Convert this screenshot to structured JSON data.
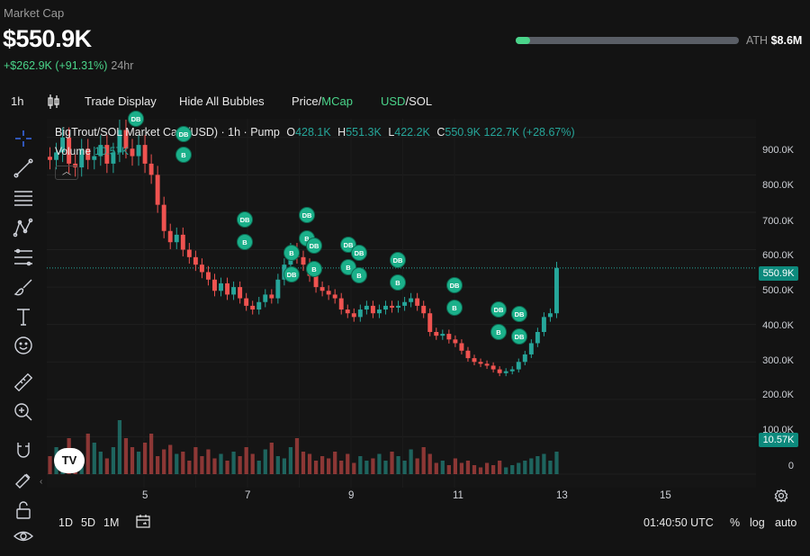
{
  "header": {
    "label": "Market Cap",
    "value": "$550.9K",
    "change": "+$262.9K (+91.31%)",
    "period": "24hr",
    "ath_label": "ATH",
    "ath_value": "$8.6M",
    "ath_progress": 0.064
  },
  "toolbar": {
    "interval": "1h",
    "trade_display": "Trade Display",
    "hide_bubbles": "Hide All Bubbles",
    "price_label": "Price",
    "mcap_label": "MCap",
    "usd_label": "USD",
    "sol_label": "SOL"
  },
  "legend": {
    "title": "BigTrout/SOL Market Cap (USD) · 1h · Pump",
    "o_key": "O",
    "o": "428.1K",
    "h_key": "H",
    "h": "551.3K",
    "l_key": "L",
    "l": "422.2K",
    "c_key": "C",
    "c": "550.9K",
    "change": "122.7K (+28.67%)",
    "volume_label": "Volume",
    "volume_value": "10.57K"
  },
  "yaxis": {
    "ticks": [
      "900.0K",
      "800.0K",
      "700.0K",
      "600.0K",
      "500.0K",
      "400.0K",
      "300.0K",
      "200.0K",
      "100.0K",
      "0"
    ],
    "current_price_tag": "550.9K",
    "volume_tag": "10.57K"
  },
  "xaxis": {
    "ticks": [
      "5",
      "7",
      "9",
      "11",
      "13",
      "15"
    ]
  },
  "bottom": {
    "ranges": [
      "1D",
      "5D",
      "1M"
    ],
    "time": "01:40:50 UTC",
    "percent": "%",
    "log": "log",
    "auto": "auto"
  },
  "logo_text": "TV",
  "bubbles": [
    {
      "label": "DB"
    },
    {
      "label": "DB"
    },
    {
      "label": "B"
    },
    {
      "label": "DB"
    },
    {
      "label": "B"
    },
    {
      "label": "DB"
    },
    {
      "label": "B"
    },
    {
      "label": "DB"
    },
    {
      "label": "B"
    },
    {
      "label": "DB"
    },
    {
      "label": "B"
    },
    {
      "label": "DB"
    },
    {
      "label": "B"
    },
    {
      "label": "DB"
    },
    {
      "label": "B"
    },
    {
      "label": "DB"
    },
    {
      "label": "B"
    },
    {
      "label": "DB"
    },
    {
      "label": "B"
    },
    {
      "label": "DB"
    },
    {
      "label": "B"
    },
    {
      "label": "DB"
    },
    {
      "label": "DB"
    }
  ],
  "colors": {
    "up": "#26a69a",
    "down": "#ef5350",
    "accent": "#4ad48a",
    "bubble": "#1bb08a"
  },
  "chart_data": {
    "type": "candlestick",
    "x_unit": "day",
    "y_unit": "USD market cap (K)",
    "ylim": [
      0,
      950
    ],
    "x_ticks": [
      5,
      7,
      9,
      11,
      13,
      15
    ],
    "close_series_k": [
      840,
      860,
      900,
      830,
      820,
      870,
      840,
      850,
      880,
      830,
      860,
      920,
      870,
      850,
      880,
      830,
      800,
      720,
      650,
      620,
      640,
      600,
      580,
      560,
      540,
      520,
      490,
      510,
      480,
      500,
      470,
      450,
      440,
      460,
      480,
      470,
      520,
      560,
      600,
      580,
      560,
      530,
      500,
      490,
      480,
      470,
      440,
      430,
      420,
      440,
      450,
      430,
      440,
      450,
      445,
      450,
      460,
      470,
      450,
      430,
      380,
      370,
      375,
      360,
      350,
      330,
      310,
      300,
      295,
      290,
      280,
      270,
      275,
      280,
      300,
      320,
      350,
      380,
      420,
      430,
      551
    ],
    "volume_series_k": [
      40,
      60,
      55,
      80,
      30,
      45,
      90,
      70,
      50,
      35,
      60,
      120,
      80,
      60,
      50,
      70,
      90,
      40,
      55,
      65,
      45,
      50,
      30,
      60,
      40,
      55,
      35,
      45,
      30,
      50,
      40,
      60,
      45,
      30,
      55,
      70,
      40,
      35,
      60,
      80,
      50,
      45,
      30,
      40,
      35,
      50,
      30,
      45,
      25,
      40,
      30,
      35,
      45,
      30,
      50,
      40,
      30,
      55,
      35,
      60,
      45,
      25,
      30,
      20,
      35,
      25,
      30,
      20,
      15,
      25,
      20,
      30,
      15,
      20,
      25,
      30,
      35,
      40,
      45,
      30,
      50
    ],
    "last": {
      "open": "428.1K",
      "high": "551.3K",
      "low": "422.2K",
      "close": "550.9K"
    }
  }
}
